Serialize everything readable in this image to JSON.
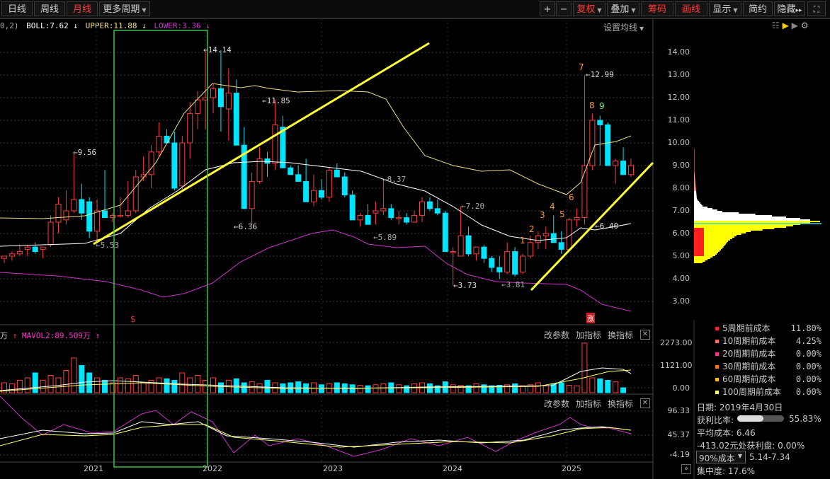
{
  "toolbar": {
    "left": [
      {
        "label": "日线"
      },
      {
        "label": "周线"
      },
      {
        "label": "月线",
        "active": true
      },
      {
        "label": "更多周期"
      }
    ],
    "right": [
      {
        "label": "+"
      },
      {
        "label": "−"
      },
      {
        "label": "复权"
      },
      {
        "label": "叠加"
      },
      {
        "label": "筹码"
      },
      {
        "label": "画线"
      },
      {
        "label": "显示"
      },
      {
        "label": "简约"
      },
      {
        "label": "隐藏"
      }
    ],
    "hide_arrows": "▸▸"
  },
  "boll": {
    "prefix": "0,2)",
    "boll": "BOLL:7.62",
    "upper": "UPPER:11.88",
    "lower": "LOWER:3.36",
    "settings": "设置均线"
  },
  "volume": {
    "unit": "万",
    "mavol2": "MAVOL2:89.509万",
    "btn_params": "改参数",
    "btn_add": "加指标",
    "btn_switch": "换指标"
  },
  "osc": {
    "btn_params": "改参数",
    "btn_add": "加指标",
    "btn_switch": "换指标"
  },
  "y_axis_price": [
    "14.00",
    "13.00",
    "12.00",
    "11.00",
    "10.00",
    "9.00",
    "8.00",
    "7.00",
    "6.00",
    "5.00",
    "4.00",
    "3.00"
  ],
  "y_axis_volume": [
    "2273.00",
    "1121.00",
    "0.00"
  ],
  "y_axis_osc": [
    "96.33",
    "45.37",
    "-4.19"
  ],
  "x_axis": [
    "2021",
    "2022",
    "2023",
    "2024",
    "2025"
  ],
  "annotations": {
    "max": "14.14",
    "high2": "11.85",
    "a956": "9.56",
    "a837": "8.37",
    "a720": "7.20",
    "a636": "6.36",
    "a589": "5.89",
    "a553": "5.53",
    "a373": "3.73",
    "a381": "3.81",
    "a1299": "12.99",
    "a640": "6.40",
    "seq": [
      "1",
      "2",
      "3",
      "4",
      "5",
      "6",
      "7",
      "8",
      "9"
    ],
    "s_mark": "$",
    "zhang": "涨"
  },
  "cost_panel": {
    "rows": [
      {
        "label": "5周期前成本",
        "pct": "11.80%",
        "color": "#ff2020"
      },
      {
        "label": "10周期前成本",
        "pct": "4.25%",
        "color": "#ff6a6a"
      },
      {
        "label": "20周期前成本",
        "pct": "0.00%",
        "color": "#ff3090"
      },
      {
        "label": "30周期前成本",
        "pct": "0.00%",
        "color": "#ff7a00"
      },
      {
        "label": "60周期前成本",
        "pct": "0.00%",
        "color": "#ffc000"
      },
      {
        "label": "100周期前成本",
        "pct": "0.00%",
        "color": "#ffff60"
      }
    ],
    "date": "日期: 2019年4月30日",
    "profit_label": "获利比率:",
    "profit_pct": "55.83%",
    "profit_ratio": 0.5583,
    "avg_cost": "平均成本: 6.46",
    "profit_at": "-413.02元处获利盘: 0.00%",
    "select": "90%成本",
    "range": "5.14-7.34",
    "concentration": "集中度: 17.6%"
  },
  "colors": {
    "up": "#ff3c3c",
    "down": "#00e5ff",
    "boll_mid": "#ffffff",
    "boll_upper": "#f2e08a",
    "boll_lower": "#cc33cc",
    "yellow": "#ffff33",
    "green_box": "#3bbf4a"
  }
}
